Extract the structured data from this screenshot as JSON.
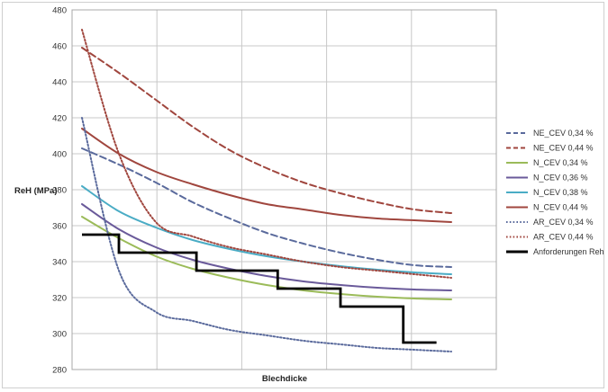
{
  "chart_data": {
    "type": "line",
    "xlabel": "Blechdicke",
    "ylabel": "ReH (MPa)",
    "ylim": [
      280,
      480
    ],
    "y_ticks": [
      280,
      300,
      320,
      340,
      360,
      380,
      400,
      420,
      440,
      460,
      480
    ],
    "x_grid_count": 5,
    "grid": true,
    "legend_position": "right",
    "x": [
      0,
      0.5,
      1,
      1.5,
      2,
      2.5,
      3,
      3.5,
      4,
      4.5,
      5
    ],
    "series": [
      {
        "name": "NE_CEV 0,34 %",
        "color": "#5a6a9c",
        "style": "dashed",
        "values": [
          403,
          394,
          384,
          373,
          364,
          356,
          350,
          345,
          341,
          338,
          337
        ]
      },
      {
        "name": "NE_CEV 0,44 %",
        "color": "#a0463e",
        "style": "dashed",
        "values": [
          459,
          445,
          430,
          415,
          402,
          392,
          384,
          378,
          373,
          369,
          367
        ]
      },
      {
        "name": "N_CEV 0,34 %",
        "color": "#9bbb59",
        "style": "solid",
        "values": [
          365,
          353,
          343,
          336,
          331,
          327,
          324,
          322,
          320.5,
          319.5,
          319
        ]
      },
      {
        "name": "N_CEV 0,36 %",
        "color": "#6a5a9a",
        "style": "solid",
        "values": [
          372,
          358,
          348,
          341,
          336,
          332,
          329,
          327,
          325.5,
          324.5,
          324
        ]
      },
      {
        "name": "N_CEV 0,38 %",
        "color": "#4aacc5",
        "style": "solid",
        "values": [
          382,
          368,
          359,
          352,
          347,
          343,
          340,
          337.5,
          335.5,
          334,
          333
        ]
      },
      {
        "name": "N_CEV 0,44 %",
        "color": "#a0463e",
        "style": "solid",
        "values": [
          414,
          400,
          390,
          383,
          377,
          372,
          369,
          366,
          364,
          363,
          362
        ]
      },
      {
        "name": "AR_CEV 0,34 %",
        "color": "#5a6a9c",
        "style": "dotted",
        "values": [
          420,
          335,
          312,
          307,
          302,
          299,
          296,
          294,
          292,
          291,
          290
        ]
      },
      {
        "name": "AR_CEV 0,44 %",
        "color": "#a0463e",
        "style": "dotted",
        "values": [
          469,
          400,
          362,
          354,
          348,
          344,
          340,
          337,
          335,
          333,
          331
        ]
      }
    ],
    "requirement": {
      "name": "Anforderungen Reh",
      "color": "#000000",
      "steps": [
        {
          "x0": 0,
          "x1": 0.5,
          "y": 355
        },
        {
          "x0": 0.5,
          "x1": 1.55,
          "y": 345
        },
        {
          "x0": 1.55,
          "x1": 2.65,
          "y": 335
        },
        {
          "x0": 2.65,
          "x1": 3.5,
          "y": 325
        },
        {
          "x0": 3.5,
          "x1": 4.35,
          "y": 315
        },
        {
          "x0": 4.35,
          "x1": 4.8,
          "y": 295
        }
      ]
    }
  }
}
